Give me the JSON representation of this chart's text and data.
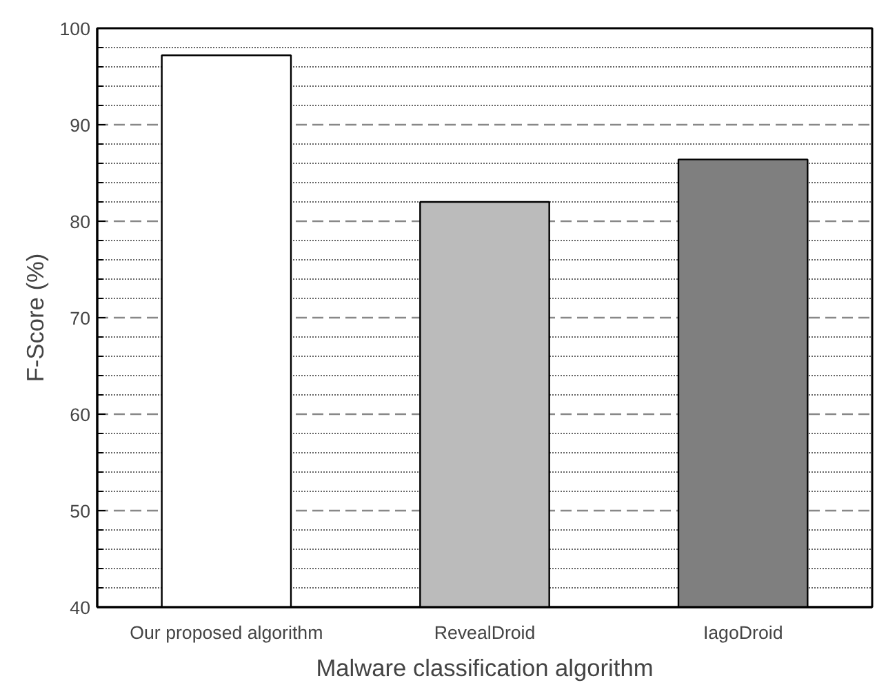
{
  "chart_data": {
    "type": "bar",
    "xlabel": "Malware classification algorithm",
    "ylabel": "F-Score (%)",
    "categories": [
      "Our proposed algorithm",
      "RevealDroid",
      "IagoDroid"
    ],
    "values": [
      97.2,
      82.0,
      86.4
    ],
    "colors": [
      "#ffffff",
      "#bbbbbb",
      "#7f7f7f"
    ],
    "ylim": [
      40,
      100
    ],
    "yticks": [
      40,
      50,
      60,
      70,
      80,
      90,
      100
    ],
    "grid": "y"
  }
}
